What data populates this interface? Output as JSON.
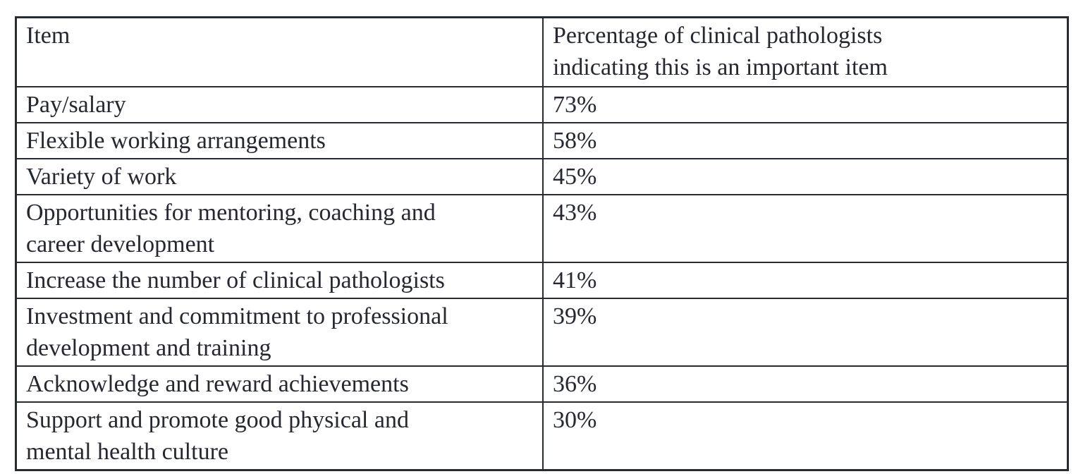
{
  "page": {
    "background_color": "#ffffff",
    "text_color": "#252833",
    "border_color": "#272b33"
  },
  "table": {
    "header": {
      "item_label": "Item",
      "percentage_label": "Percentage of clinical pathologists\nindicating this is an important item"
    },
    "rows": [
      {
        "item": "Pay/salary",
        "value": "73%"
      },
      {
        "item": "Flexible working arrangements",
        "value": "58%"
      },
      {
        "item": "Variety of work",
        "value": "45%"
      },
      {
        "item": "Opportunities for mentoring, coaching and\ncareer development",
        "value": "43%"
      },
      {
        "item": "Increase the number of clinical pathologists",
        "value": "41%"
      },
      {
        "item": "Investment and commitment to professional\ndevelopment and training",
        "value": "39%"
      },
      {
        "item": "Acknowledge and reward achievements",
        "value": "36%"
      },
      {
        "item": "Support and promote good physical and\nmental health culture",
        "value": "30%"
      }
    ]
  },
  "chart_data": {
    "type": "table",
    "columns": [
      "Item",
      "Percentage of clinical pathologists indicating this is an important item"
    ],
    "categories": [
      "Pay/salary",
      "Flexible working arrangements",
      "Variety of work",
      "Opportunities for mentoring, coaching and career development",
      "Increase the number of clinical pathologists",
      "Investment and commitment to professional development and training",
      "Acknowledge and reward achievements",
      "Support and promote good physical and mental health culture"
    ],
    "values": [
      73,
      58,
      45,
      43,
      41,
      39,
      36,
      30
    ],
    "unit": "%"
  }
}
